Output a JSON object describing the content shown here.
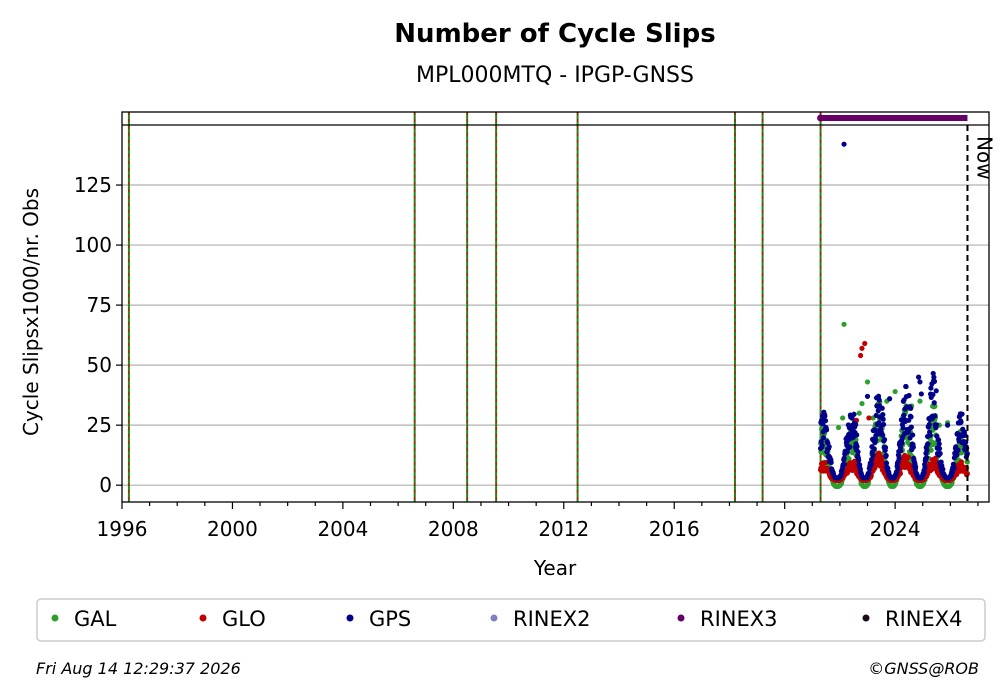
{
  "chart_data": {
    "type": "scatter",
    "title": "Number of Cycle Slips",
    "subtitle": "MPL000MTQ - IPGP-GNSS",
    "xlabel": "Year",
    "ylabel": "Cycle Slipsx1000/nr. Obs",
    "xlim": [
      1996.0,
      2027.4
    ],
    "ylim": [
      -7,
      150
    ],
    "x_ticks": [
      1996,
      2000,
      2004,
      2008,
      2012,
      2016,
      2020,
      2024
    ],
    "y_ticks": [
      0,
      25,
      50,
      75,
      100,
      125
    ],
    "grid": "horizontal",
    "legend_position": "bottom",
    "now_label": "Now",
    "now_x": 2026.62,
    "event_lines_x": [
      1996.25,
      2006.6,
      2008.5,
      2009.55,
      2012.5,
      2018.2,
      2019.2,
      2021.3
    ],
    "rinex3_span": [
      2021.3,
      2026.62
    ],
    "series": [
      {
        "name": "GAL",
        "color": "#2ca02c",
        "points": [
          [
            2021.95,
            24
          ],
          [
            2022.1,
            28
          ],
          [
            2022.15,
            67
          ],
          [
            2022.7,
            30
          ],
          [
            2022.8,
            34
          ],
          [
            2023.0,
            43
          ],
          [
            2023.2,
            28
          ],
          [
            2023.7,
            35
          ],
          [
            2024.0,
            39
          ],
          [
            2024.6,
            33
          ],
          [
            2024.9,
            35
          ],
          [
            2025.6,
            25
          ],
          [
            2025.9,
            26
          ]
        ],
        "seasonal_peaks": [
          22,
          32,
          32,
          30,
          22
        ]
      },
      {
        "name": "GLO",
        "color": "#c00000",
        "points": [
          [
            2022.75,
            54
          ],
          [
            2022.8,
            57
          ],
          [
            2022.9,
            59
          ],
          [
            2023.05,
            28
          ],
          [
            2022.6,
            27
          ]
        ],
        "seasonal_peaks": [
          7,
          10,
          10,
          9,
          7
        ]
      },
      {
        "name": "GPS",
        "color": "#00008b",
        "points": [
          [
            2022.15,
            142
          ],
          [
            2023.0,
            37
          ],
          [
            2023.8,
            36
          ],
          [
            2024.85,
            45
          ],
          [
            2024.9,
            43
          ],
          [
            2024.95,
            38
          ],
          [
            2025.9,
            25
          ]
        ],
        "seasonal_peaks": [
          24,
          32,
          34,
          40,
          24
        ]
      }
    ],
    "legend": [
      {
        "label": "GAL",
        "color": "#2ca02c"
      },
      {
        "label": "GLO",
        "color": "#c00000"
      },
      {
        "label": "GPS",
        "color": "#00008b"
      },
      {
        "label": "RINEX2",
        "color": "#8080c0"
      },
      {
        "label": "RINEX3",
        "color": "#660066"
      },
      {
        "label": "RINEX4",
        "color": "#1a0a1a"
      }
    ]
  },
  "footer": {
    "timestamp": "Fri Aug 14 12:29:37 2026",
    "copyright": "©GNSS@ROB"
  }
}
